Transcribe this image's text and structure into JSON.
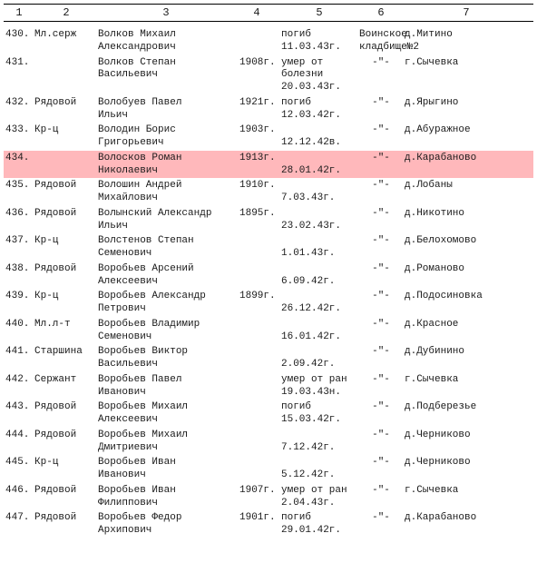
{
  "headers": [
    "1",
    "2",
    "3",
    "4",
    "5",
    "6",
    "7"
  ],
  "rows": [
    {
      "c1": "430.",
      "c2": "Мл.серж",
      "c3": "Волков Михаил\nАлександрович",
      "c4": "",
      "c5": "погиб\n11.03.43г.",
      "c6": "Воинское\nкладбище№2",
      "c7": "д.Митино",
      "hl": false
    },
    {
      "c1": "431.",
      "c2": "",
      "c3": "Волков Степан\nВасильевич",
      "c4": "1908г.",
      "c5": "умер от болезни\n20.03.43г.",
      "c6": "-\"-",
      "c7": "г.Сычевка",
      "hl": false
    },
    {
      "c1": "432.",
      "c2": "Рядовой",
      "c3": "Волобуев Павел\nИльич",
      "c4": "1921г.",
      "c5": "погиб\n12.03.42г.",
      "c6": "-\"-",
      "c7": "д.Ярыгино",
      "hl": false
    },
    {
      "c1": "433.",
      "c2": "Кр-ц",
      "c3": "Володин Борис\nГригорьевич",
      "c4": "1903г.",
      "c5": "\n12.12.42в.",
      "c6": "-\"-",
      "c7": "д.Абуражное",
      "hl": false
    },
    {
      "c1": "434.",
      "c2": "",
      "c3": "Волосков Роман\nНиколаевич",
      "c4": "1913г.",
      "c5": "\n28.01.42г.",
      "c6": "-\"-",
      "c7": "д.Карабаново",
      "hl": true
    },
    {
      "c1": "435.",
      "c2": "Рядовой",
      "c3": "Волошин Андрей\nМихайлович",
      "c4": "1910г.",
      "c5": "\n7.03.43г.",
      "c6": "-\"-",
      "c7": "д.Лобаны",
      "hl": false
    },
    {
      "c1": "436.",
      "c2": "Рядовой",
      "c3": "Волынский Александр\nИльич",
      "c4": "1895г.",
      "c5": "\n23.02.43г.",
      "c6": "-\"-",
      "c7": "д.Никотино",
      "hl": false
    },
    {
      "c1": "437.",
      "c2": "Кр-ц",
      "c3": "Волстенов Степан\nСеменович",
      "c4": "",
      "c5": "\n1.01.43г.",
      "c6": "-\"-",
      "c7": "д.Белохомово",
      "hl": false
    },
    {
      "c1": "438.",
      "c2": "Рядовой",
      "c3": "Воробьев Арсений\nАлексеевич",
      "c4": "",
      "c5": "\n6.09.42г.",
      "c6": "-\"-",
      "c7": "д.Романово",
      "hl": false
    },
    {
      "c1": "439.",
      "c2": "Кр-ц",
      "c3": "Воробьев Александр\nПетрович",
      "c4": "1899г.",
      "c5": "\n26.12.42г.",
      "c6": "-\"-",
      "c7": "д.Подосиновка",
      "hl": false
    },
    {
      "c1": "440.",
      "c2": "Мл.л-т",
      "c3": "Воробьев Владимир\nСеменович",
      "c4": "",
      "c5": "\n16.01.42г.",
      "c6": "-\"-",
      "c7": "д.Красное",
      "hl": false
    },
    {
      "c1": "441.",
      "c2": "Старшина",
      "c3": "Воробьев Виктор\nВасильевич",
      "c4": "",
      "c5": "\n2.09.42г.",
      "c6": "-\"-",
      "c7": "д.Дубинино",
      "hl": false
    },
    {
      "c1": "442.",
      "c2": "Сержант",
      "c3": "Воробьев Павел\nИванович",
      "c4": "",
      "c5": "умер от ран\n19.03.43н.",
      "c6": "-\"-",
      "c7": "г.Сычевка",
      "hl": false
    },
    {
      "c1": "443.",
      "c2": "Рядовой",
      "c3": "Воробьев Михаил\nАлексеевич",
      "c4": "",
      "c5": "погиб\n15.03.42г.",
      "c6": "-\"-",
      "c7": "д.Подберезье",
      "hl": false
    },
    {
      "c1": "444.",
      "c2": "Рядовой",
      "c3": "Воробьев Михаил\nДмитриевич",
      "c4": "",
      "c5": "\n7.12.42г.",
      "c6": "-\"-",
      "c7": "д.Черниково",
      "hl": false
    },
    {
      "c1": "445.",
      "c2": "Кр-ц",
      "c3": "Воробьев Иван\nИванович",
      "c4": "",
      "c5": "\n5.12.42г.",
      "c6": "-\"-",
      "c7": "д.Черниково",
      "hl": false
    },
    {
      "c1": "446.",
      "c2": "Рядовой",
      "c3": "Воробьев Иван\nФилиппович",
      "c4": "1907г.",
      "c5": "умер от ран\n2.04.43г.",
      "c6": "-\"-",
      "c7": "г.Сычевка",
      "hl": false
    },
    {
      "c1": "447.",
      "c2": "Рядовой",
      "c3": "Воробьев Федор\nАрхипович",
      "c4": "1901г.",
      "c5": "погиб\n29.01.42г.",
      "c6": "-\"-",
      "c7": "д.Карабаново",
      "hl": false
    }
  ]
}
